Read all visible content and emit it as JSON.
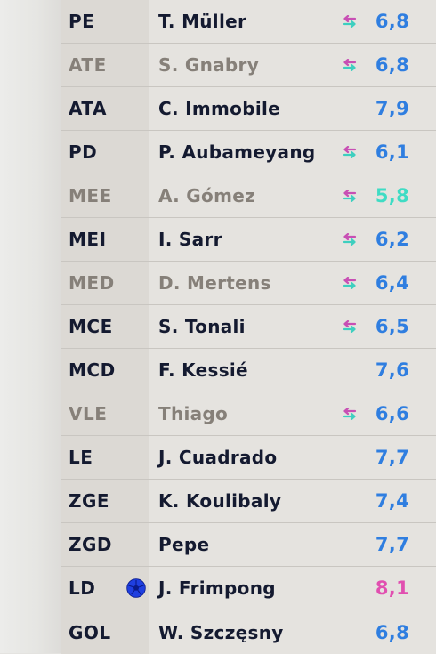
{
  "lineup": [
    {
      "pos": "PE",
      "name": "T. Müller",
      "rating": "6,8",
      "rating_color": "#2f7ee0",
      "muted": false,
      "sub": true,
      "ball": false
    },
    {
      "pos": "ATE",
      "name": "S. Gnabry",
      "rating": "6,8",
      "rating_color": "#2f7ee0",
      "muted": true,
      "sub": true,
      "ball": false
    },
    {
      "pos": "ATA",
      "name": "C. Immobile",
      "rating": "7,9",
      "rating_color": "#2f7ee0",
      "muted": false,
      "sub": false,
      "ball": false
    },
    {
      "pos": "PD",
      "name": "P. Aubameyang",
      "rating": "6,1",
      "rating_color": "#2f7ee0",
      "muted": false,
      "sub": true,
      "ball": false
    },
    {
      "pos": "MEE",
      "name": "A. Gómez",
      "rating": "5,8",
      "rating_color": "#3fdcc4",
      "muted": true,
      "sub": true,
      "ball": false
    },
    {
      "pos": "MEI",
      "name": "I. Sarr",
      "rating": "6,2",
      "rating_color": "#2f7ee0",
      "muted": false,
      "sub": true,
      "ball": false
    },
    {
      "pos": "MED",
      "name": "D. Mertens",
      "rating": "6,4",
      "rating_color": "#2f7ee0",
      "muted": true,
      "sub": true,
      "ball": false
    },
    {
      "pos": "MCE",
      "name": "S. Tonali",
      "rating": "6,5",
      "rating_color": "#2f7ee0",
      "muted": false,
      "sub": true,
      "ball": false
    },
    {
      "pos": "MCD",
      "name": "F. Kessié",
      "rating": "7,6",
      "rating_color": "#2f7ee0",
      "muted": false,
      "sub": false,
      "ball": false
    },
    {
      "pos": "VLE",
      "name": "Thiago",
      "rating": "6,6",
      "rating_color": "#2f7ee0",
      "muted": true,
      "sub": true,
      "ball": false
    },
    {
      "pos": "LE",
      "name": "J. Cuadrado",
      "rating": "7,7",
      "rating_color": "#2f7ee0",
      "muted": false,
      "sub": false,
      "ball": false
    },
    {
      "pos": "ZGE",
      "name": "K. Koulibaly",
      "rating": "7,4",
      "rating_color": "#2f7ee0",
      "muted": false,
      "sub": false,
      "ball": false
    },
    {
      "pos": "ZGD",
      "name": "Pepe",
      "rating": "7,7",
      "rating_color": "#2f7ee0",
      "muted": false,
      "sub": false,
      "ball": false
    },
    {
      "pos": "LD",
      "name": "J. Frimpong",
      "rating": "8,1",
      "rating_color": "#e14fb0",
      "muted": false,
      "sub": false,
      "ball": true
    },
    {
      "pos": "GOL",
      "name": "W. Szczęsny",
      "rating": "6,8",
      "rating_color": "#2f7ee0",
      "muted": false,
      "sub": false,
      "ball": false
    }
  ],
  "icons": {
    "substitution": "substitution-arrows-icon",
    "goal": "soccer-ball-icon"
  },
  "colors": {
    "sub_out": "#c84fb4",
    "sub_in": "#3dcfbf",
    "ball": "#1f3fe0",
    "text_dark": "#141a30",
    "text_muted": "#868079"
  }
}
